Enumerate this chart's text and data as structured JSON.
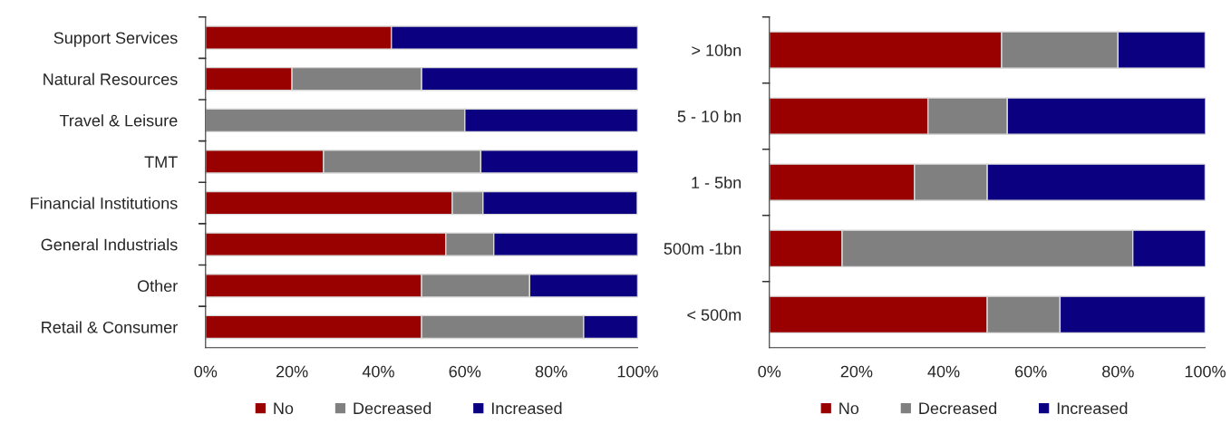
{
  "chart_data": [
    {
      "type": "bar",
      "orientation": "horizontal",
      "stacked": true,
      "legend": "bottom",
      "categories": [
        "Support Services",
        "Natural Resources",
        "Travel & Leisure",
        "TMT",
        "Financial Institutions",
        "General Industrials",
        "Other",
        "Retail & Consumer"
      ],
      "series": [
        {
          "name": "No",
          "color": "#990000",
          "values": [
            43,
            20,
            0,
            27.3,
            57.1,
            55.6,
            50,
            50
          ]
        },
        {
          "name": "Decreased",
          "color": "#808080",
          "values": [
            0,
            30,
            60,
            36.4,
            7.1,
            11.1,
            25,
            37.5
          ]
        },
        {
          "name": "Increased",
          "color": "#0a0080",
          "values": [
            57,
            50,
            40,
            36.4,
            35.7,
            33.3,
            25,
            12.5
          ]
        }
      ],
      "xlim": [
        0,
        100
      ],
      "xticks": [
        {
          "value": 0,
          "label": "0%"
        },
        {
          "value": 20,
          "label": "20%"
        },
        {
          "value": 40,
          "label": "40%"
        },
        {
          "value": 60,
          "label": "60%"
        },
        {
          "value": 80,
          "label": "80%"
        },
        {
          "value": 100,
          "label": "100%"
        }
      ]
    },
    {
      "type": "bar",
      "orientation": "horizontal",
      "stacked": true,
      "legend": "bottom",
      "categories": [
        "> 10bn",
        "5 - 10 bn",
        "1 - 5bn",
        "500m -1bn",
        "< 500m"
      ],
      "series": [
        {
          "name": "No",
          "color": "#990000",
          "values": [
            53.3,
            36.4,
            33.3,
            16.7,
            50
          ]
        },
        {
          "name": "Decreased",
          "color": "#808080",
          "values": [
            26.7,
            18.2,
            16.7,
            66.7,
            16.7
          ]
        },
        {
          "name": "Increased",
          "color": "#0a0080",
          "values": [
            20,
            45.5,
            50,
            16.7,
            33.3
          ]
        }
      ],
      "xlim": [
        0,
        100
      ],
      "xticks": [
        {
          "value": 0,
          "label": "0%"
        },
        {
          "value": 20,
          "label": "20%"
        },
        {
          "value": 40,
          "label": "40%"
        },
        {
          "value": 60,
          "label": "60%"
        },
        {
          "value": 80,
          "label": "80%"
        },
        {
          "value": 100,
          "label": "100%"
        }
      ]
    }
  ]
}
